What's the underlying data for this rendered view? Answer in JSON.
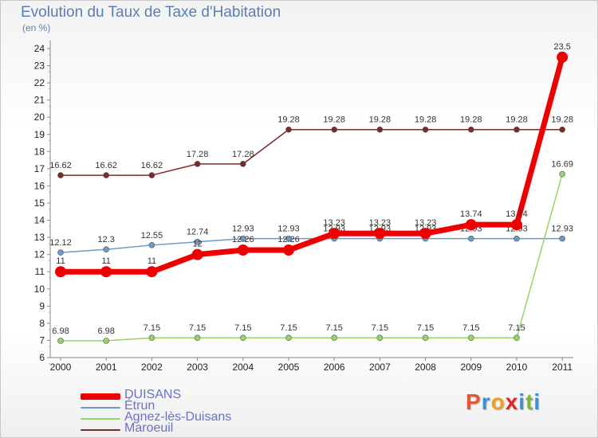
{
  "title": "Evolution du Taux de Taxe d'Habitation",
  "unit_label": "(en %)",
  "logo": {
    "letters": [
      "P",
      "r",
      "o",
      "x",
      "i",
      "t",
      "i"
    ],
    "colors": [
      "#e8563a",
      "#3a8fd8",
      "#f0a020",
      "#e02828",
      "#3a8fd8",
      "#7ab838",
      "#3a8fd8"
    ]
  },
  "chart_data": {
    "type": "line",
    "x": [
      "2000",
      "2001",
      "2002",
      "2003",
      "2004",
      "2005",
      "2006",
      "2007",
      "2008",
      "2009",
      "2010",
      "2011"
    ],
    "ylim": [
      6,
      24
    ],
    "yticks": [
      6,
      7,
      8,
      9,
      10,
      11,
      12,
      13,
      14,
      15,
      16,
      17,
      18,
      19,
      20,
      21,
      22,
      23,
      24
    ],
    "grid": false,
    "series": [
      {
        "name": "Maroeuil",
        "color": "#7a2a2a",
        "values": [
          16.62,
          16.62,
          16.62,
          17.28,
          17.28,
          19.28,
          19.28,
          19.28,
          19.28,
          19.28,
          19.28,
          19.28
        ],
        "labels": [
          "16.62",
          "16.62",
          "16.62",
          "17.28",
          "17.28",
          "19.28",
          "19.28",
          "19.28",
          "19.28",
          "19.28",
          "19.28",
          "19.28"
        ]
      },
      {
        "name": "Étrun",
        "color": "#6a9ac8",
        "values": [
          12.12,
          12.3,
          12.55,
          12.74,
          12.93,
          12.93,
          12.93,
          12.93,
          12.93,
          12.93,
          12.93,
          12.93
        ],
        "labels": [
          "12.12",
          "12.3",
          "12.55",
          "12.74",
          "12.93",
          "12.93",
          "12.93",
          "12.93",
          "12.93",
          "12.93",
          "12.93",
          "12.93"
        ]
      },
      {
        "name": "Agnez-lès-Duisans",
        "color": "#96d46a",
        "values": [
          6.98,
          6.98,
          7.15,
          7.15,
          7.15,
          7.15,
          7.15,
          7.15,
          7.15,
          7.15,
          7.15,
          16.69
        ],
        "labels": [
          "6.98",
          "6.98",
          "7.15",
          "7.15",
          "7.15",
          "7.15",
          "7.15",
          "7.15",
          "7.15",
          "7.15",
          "7.15",
          "16.69"
        ]
      },
      {
        "name": "DUISANS",
        "color": "#ee0000",
        "values": [
          11,
          11,
          11,
          12,
          12.26,
          12.26,
          13.23,
          13.23,
          13.23,
          13.74,
          13.74,
          23.5
        ],
        "labels": [
          "11",
          "11",
          "11",
          "12",
          "12.26",
          "12.26",
          "13.23",
          "13.23",
          "13.23",
          "13.74",
          "13.74",
          "23.5"
        ]
      }
    ],
    "legend": [
      "DUISANS",
      "Étrun",
      "Agnez-lès-Duisans",
      "Maroeuil"
    ]
  }
}
